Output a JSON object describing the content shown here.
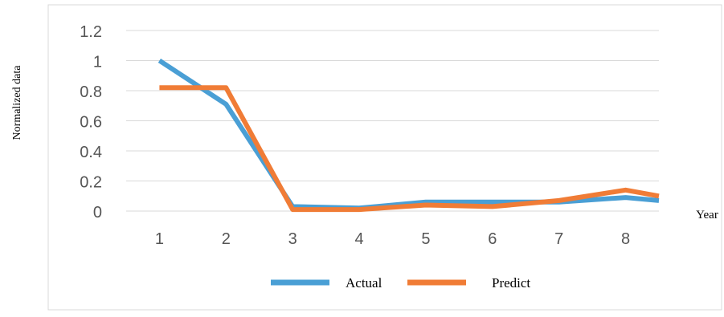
{
  "chart_data": {
    "type": "line",
    "title": "",
    "xlabel": "Year",
    "ylabel": "Normalized data",
    "x": [
      1,
      2,
      3,
      4,
      5,
      6,
      7,
      8,
      8.5
    ],
    "x_tick_labels": [
      "1",
      "2",
      "3",
      "4",
      "5",
      "6",
      "7",
      "8"
    ],
    "y_ticks": [
      0,
      0.2,
      0.4,
      0.6,
      0.8,
      1,
      1.2
    ],
    "y_tick_labels": [
      "0",
      "0.2",
      "0.4",
      "0.6",
      "0.8",
      "1",
      "1.2"
    ],
    "xlim": [
      0.5,
      8.5
    ],
    "ylim": [
      0,
      1.2
    ],
    "grid": true,
    "legend": "bottom",
    "series": [
      {
        "name": "Actual",
        "color": "#4a9fd5",
        "values": [
          1.0,
          0.71,
          0.03,
          0.02,
          0.06,
          0.06,
          0.06,
          0.09,
          0.07
        ]
      },
      {
        "name": "Predict",
        "color": "#f07c36",
        "values": [
          0.82,
          0.82,
          0.01,
          0.01,
          0.04,
          0.03,
          0.07,
          0.14,
          0.1
        ]
      }
    ]
  }
}
